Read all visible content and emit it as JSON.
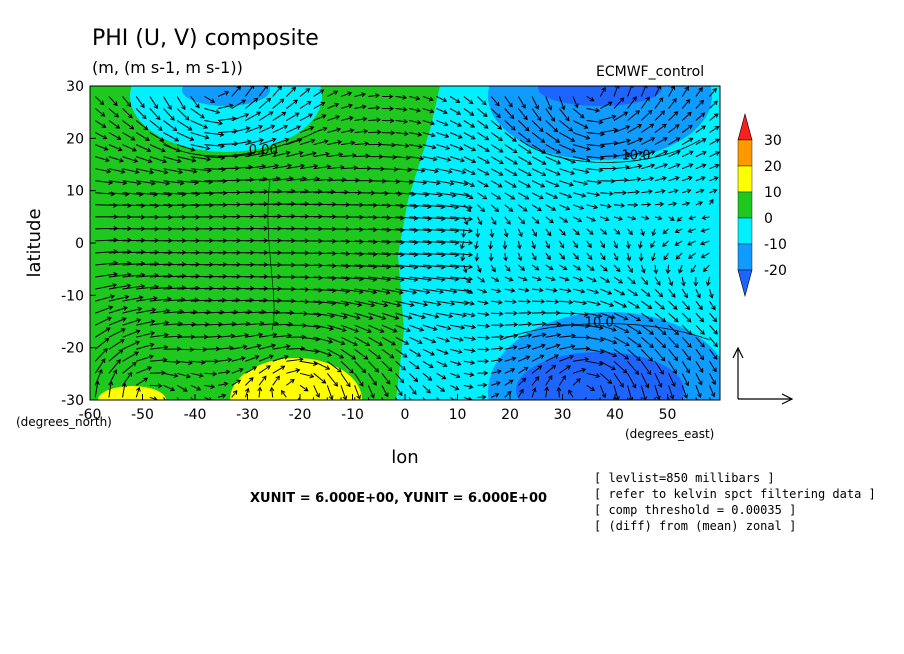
{
  "chart_data": {
    "type": "heatmap",
    "title": "PHI (U, V) composite",
    "units_line": "(m, (m s-1, m s-1))",
    "dataset_label": "ECMWF_control",
    "xlabel": "lon",
    "ylabel": "latitude",
    "x_units_label": "(degrees_east)",
    "y_units_label": "(degrees_north)",
    "xlim": [
      -60,
      60
    ],
    "ylim": [
      -30,
      30
    ],
    "x_ticks": [
      -60,
      -50,
      -40,
      -30,
      -20,
      -10,
      0,
      10,
      20,
      30,
      40,
      50
    ],
    "x_tick_labels": [
      "-60",
      "-50",
      "-40",
      "-30",
      "-20",
      "-10",
      "0",
      "10",
      "20",
      "30",
      "40",
      "50"
    ],
    "y_ticks": [
      -30,
      -20,
      -10,
      0,
      10,
      20,
      30
    ],
    "y_tick_labels": [
      "-30",
      "-20",
      "-10",
      "0",
      "10",
      "20",
      "30"
    ],
    "colorbar": {
      "levels": [
        -20,
        -10,
        0,
        10,
        20,
        30
      ],
      "labels": [
        "-20",
        "-10",
        "0",
        "10",
        "20",
        "30"
      ],
      "colors": [
        "#1e64ff",
        "#0f9bff",
        "#00f0ff",
        "#1ec81e",
        "#ffff00",
        "#ff9900",
        "#ff1e1e"
      ]
    },
    "contour_labels": [
      {
        "text": "0.00",
        "lon": -27,
        "lat": 17
      },
      {
        "text": "10.0",
        "lon": 44,
        "lat": 16
      },
      {
        "text": "10.0",
        "lon": 37,
        "lat": -16
      }
    ],
    "regions": [
      {
        "kind": "low",
        "lon": -37,
        "lat": 28,
        "value": -15
      },
      {
        "kind": "low",
        "lon": 35,
        "lat": 27,
        "value": -20
      },
      {
        "kind": "low",
        "lon": 35,
        "lat": -27,
        "value": -20
      },
      {
        "kind": "high",
        "lon": -20,
        "lat": -27,
        "value": 12
      },
      {
        "kind": "high",
        "lon": -51,
        "lat": -29,
        "value": 11
      }
    ],
    "vector_units": {
      "xunit": 6.0,
      "yunit": 6.0
    },
    "grid": false,
    "legend_position": "right"
  },
  "annotations": {
    "unit_line": "XUNIT = 6.000E+00, YUNIT = 6.000E+00",
    "notes": [
      "[ levlist=850 millibars ]",
      "[ refer to kelvin spct filtering data ]",
      "[ comp threshold = 0.00035 ]",
      "[ (diff) from (mean) zonal ]"
    ]
  }
}
